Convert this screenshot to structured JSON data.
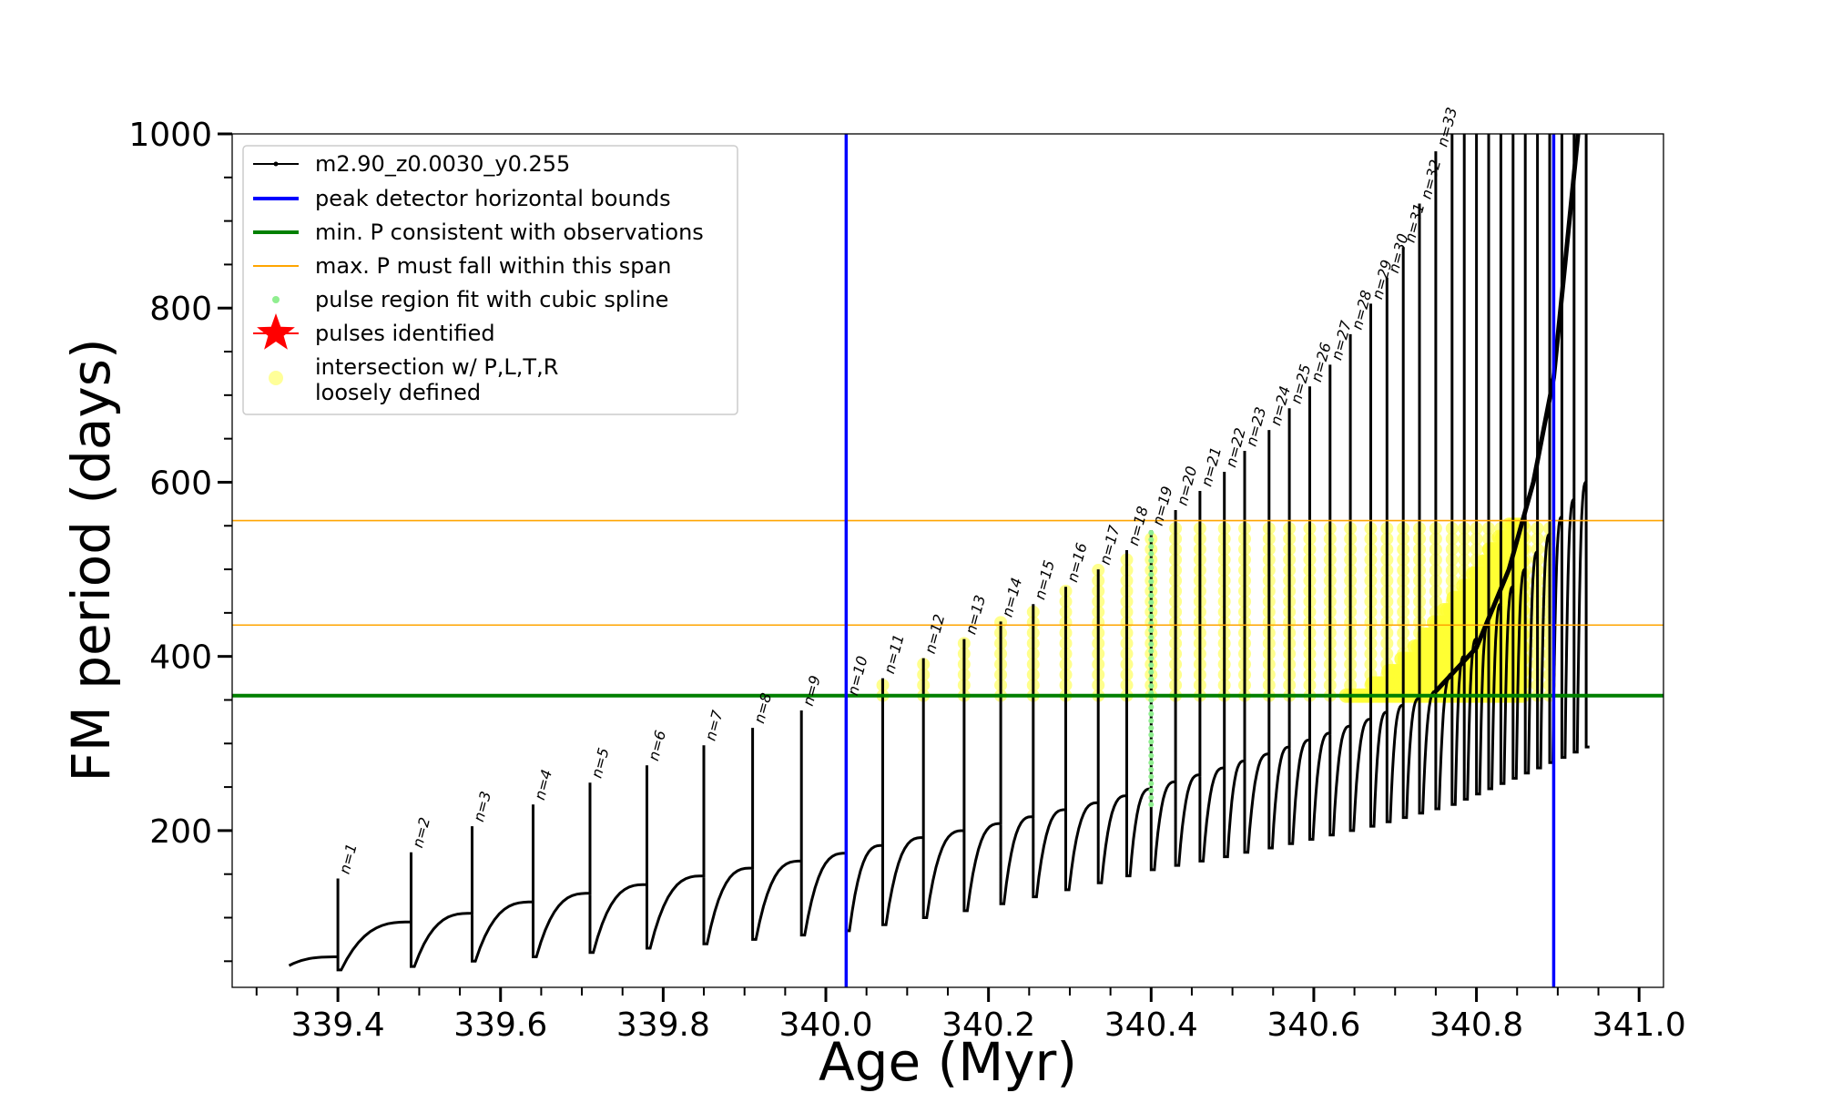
{
  "chart_data": {
    "type": "line",
    "xlabel": "Age (Myr)",
    "ylabel": "FM period (days)",
    "xlim": [
      339.27,
      341.03
    ],
    "ylim": [
      20,
      1000
    ],
    "xticks": [
      339.4,
      339.6,
      339.8,
      340.0,
      340.2,
      340.4,
      340.6,
      340.8,
      341.0
    ],
    "xtick_labels": [
      "339.4",
      "339.6",
      "339.8",
      "340.0",
      "340.2",
      "340.4",
      "340.6",
      "340.8",
      "341.0"
    ],
    "yticks": [
      200,
      400,
      600,
      800,
      1000
    ],
    "ytick_labels": [
      "200",
      "400",
      "600",
      "800",
      "1000"
    ],
    "grid": false,
    "legend_placement": "top-left",
    "legend": [
      {
        "label": "m2.90_z0.0030_y0.255",
        "color": "#000000",
        "kind": "line-marker"
      },
      {
        "label": "peak detector horizontal bounds",
        "color": "#0000ff",
        "kind": "thick-line"
      },
      {
        "label": "min. P consistent with observations",
        "color": "#008000",
        "kind": "thick-line"
      },
      {
        "label": "max. P must fall within this span",
        "color": "#ffa500",
        "kind": "thin-line"
      },
      {
        "label": "pulse region fit with cubic spline",
        "color": "#90ee90",
        "kind": "dot"
      },
      {
        "label": "pulses identified",
        "color": "#ff0000",
        "kind": "star"
      },
      {
        "label": "intersection w/ P,L,T,R\nloosely defined",
        "color": "#ffff99",
        "kind": "circle"
      }
    ],
    "vertical_lines": {
      "color": "#0000ff",
      "x": [
        340.025,
        340.895
      ]
    },
    "min_period_line": {
      "color": "#008000",
      "y": 355
    },
    "max_period_span": {
      "color": "#ffa500",
      "y": [
        436,
        556
      ]
    },
    "start_point": {
      "x": 339.34,
      "y": 45
    },
    "pulses": [
      {
        "label": "n=1",
        "x": 339.4,
        "base": 55,
        "peak": 145,
        "trough": 40
      },
      {
        "label": "n=2",
        "x": 339.49,
        "base": 95,
        "peak": 175,
        "trough": 44
      },
      {
        "label": "n=3",
        "x": 339.565,
        "base": 105,
        "peak": 205,
        "trough": 50
      },
      {
        "label": "n=4",
        "x": 339.64,
        "base": 118,
        "peak": 230,
        "trough": 55
      },
      {
        "label": "n=5",
        "x": 339.71,
        "base": 128,
        "peak": 255,
        "trough": 60
      },
      {
        "label": "n=6",
        "x": 339.78,
        "base": 138,
        "peak": 275,
        "trough": 65
      },
      {
        "label": "n=7",
        "x": 339.85,
        "base": 148,
        "peak": 298,
        "trough": 70
      },
      {
        "label": "n=8",
        "x": 339.91,
        "base": 157,
        "peak": 318,
        "trough": 75
      },
      {
        "label": "n=9",
        "x": 339.97,
        "base": 165,
        "peak": 338,
        "trough": 80
      },
      {
        "label": "n=10",
        "x": 340.025,
        "base": 174,
        "peak": 350,
        "trough": 85
      },
      {
        "label": "n=11",
        "x": 340.07,
        "base": 183,
        "peak": 375,
        "trough": 92
      },
      {
        "label": "n=12",
        "x": 340.12,
        "base": 192,
        "peak": 398,
        "trough": 100
      },
      {
        "label": "n=13",
        "x": 340.17,
        "base": 200,
        "peak": 420,
        "trough": 108
      },
      {
        "label": "n=14",
        "x": 340.215,
        "base": 208,
        "peak": 440,
        "trough": 116
      },
      {
        "label": "n=15",
        "x": 340.255,
        "base": 216,
        "peak": 460,
        "trough": 124
      },
      {
        "label": "n=16",
        "x": 340.295,
        "base": 224,
        "peak": 480,
        "trough": 132
      },
      {
        "label": "n=17",
        "x": 340.335,
        "base": 232,
        "peak": 500,
        "trough": 140
      },
      {
        "label": "n=18",
        "x": 340.37,
        "base": 240,
        "peak": 522,
        "trough": 148
      },
      {
        "label": "n=19",
        "x": 340.4,
        "base": 248,
        "peak": 545,
        "trough": 155
      },
      {
        "label": "n=20",
        "x": 340.43,
        "base": 256,
        "peak": 568,
        "trough": 160
      },
      {
        "label": "n=21",
        "x": 340.46,
        "base": 264,
        "peak": 590,
        "trough": 165
      },
      {
        "label": "n=22",
        "x": 340.49,
        "base": 272,
        "peak": 612,
        "trough": 170
      },
      {
        "label": "n=23",
        "x": 340.515,
        "base": 280,
        "peak": 636,
        "trough": 175
      },
      {
        "label": "n=24",
        "x": 340.545,
        "base": 288,
        "peak": 660,
        "trough": 180
      },
      {
        "label": "n=25",
        "x": 340.57,
        "base": 296,
        "peak": 685,
        "trough": 185
      },
      {
        "label": "n=26",
        "x": 340.595,
        "base": 304,
        "peak": 710,
        "trough": 190
      },
      {
        "label": "n=27",
        "x": 340.62,
        "base": 312,
        "peak": 735,
        "trough": 195
      },
      {
        "label": "n=28",
        "x": 340.645,
        "base": 320,
        "peak": 770,
        "trough": 200
      },
      {
        "label": "n=29",
        "x": 340.67,
        "base": 328,
        "peak": 805,
        "trough": 205
      },
      {
        "label": "n=30",
        "x": 340.69,
        "base": 336,
        "peak": 835,
        "trough": 210
      },
      {
        "label": "n=31",
        "x": 340.71,
        "base": 344,
        "peak": 870,
        "trough": 215
      },
      {
        "label": "n=32",
        "x": 340.73,
        "base": 352,
        "peak": 920,
        "trough": 220
      },
      {
        "label": "n=33",
        "x": 340.75,
        "base": 360,
        "peak": 980,
        "trough": 225
      }
    ],
    "late_spikes_x": [
      340.77,
      340.785,
      340.8,
      340.815,
      340.83,
      340.845,
      340.86,
      340.875,
      340.89,
      340.905,
      340.92,
      340.935
    ],
    "spline_fit_x": 340.4,
    "spline_fit_range": [
      230,
      545
    ],
    "final_rise": [
      {
        "x": 340.75,
        "y": 360
      },
      {
        "x": 340.8,
        "y": 410
      },
      {
        "x": 340.84,
        "y": 500
      },
      {
        "x": 340.87,
        "y": 600
      },
      {
        "x": 340.895,
        "y": 720
      },
      {
        "x": 340.91,
        "y": 860
      },
      {
        "x": 340.925,
        "y": 1000
      }
    ]
  }
}
